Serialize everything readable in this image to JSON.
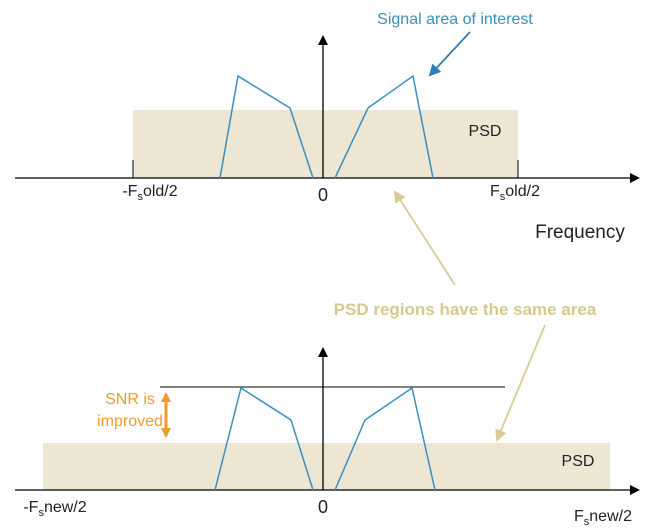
{
  "top": {
    "callout": "Signal area of interest",
    "psd": "PSD",
    "left_edge": {
      "pre": "-F",
      "sub": "s",
      "post": "old/2"
    },
    "origin": "0",
    "right_edge": {
      "pre": "F",
      "sub": "s",
      "post": "old/2"
    },
    "axis_label": "Frequency"
  },
  "note": "PSD regions have the same area",
  "bottom": {
    "snr": [
      "SNR is",
      "improved"
    ],
    "psd": "PSD",
    "left_edge": {
      "pre": "-F",
      "sub": "s",
      "post": "new/2"
    },
    "origin": "0",
    "right_edge": {
      "pre": "F",
      "sub": "s",
      "post": "new/2"
    }
  }
}
